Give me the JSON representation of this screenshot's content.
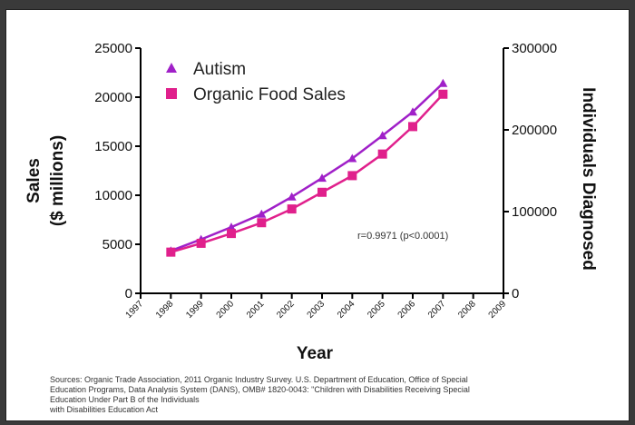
{
  "chart_data": {
    "type": "line",
    "xlabel": "Year",
    "ylabel_left_line1": "Sales",
    "ylabel_left_line2": "($ millions)",
    "ylabel_right": "Individuals Diagnosed",
    "x_ticks": [
      "1997",
      "1998",
      "1999",
      "2000",
      "2001",
      "2002",
      "2003",
      "2004",
      "2005",
      "2006",
      "2007",
      "2008",
      "2009"
    ],
    "xlim": [
      1997,
      2009
    ],
    "ylim_left": [
      0,
      25000
    ],
    "ylim_right": [
      0,
      300000
    ],
    "y_ticks_left": [
      "0",
      "5000",
      "10000",
      "15000",
      "20000",
      "25000"
    ],
    "y_ticks_right": [
      "0",
      "100000",
      "200000",
      "300000"
    ],
    "x": [
      1998,
      1999,
      2000,
      2001,
      2002,
      2003,
      2004,
      2005,
      2006,
      2007
    ],
    "series": [
      {
        "name": "Autism",
        "axis": "right",
        "marker": "triangle",
        "color": "#a020c8",
        "values": [
          52000,
          66000,
          81000,
          97000,
          118000,
          141000,
          165000,
          193000,
          222000,
          257000
        ]
      },
      {
        "name": "Organic Food Sales",
        "axis": "left",
        "marker": "square",
        "color": "#e0208c",
        "values": [
          4200,
          5100,
          6100,
          7200,
          8600,
          10300,
          12000,
          14200,
          17000,
          20300
        ]
      }
    ],
    "annotation": "r=0.9971 (p<0.0001)",
    "legend_position": "top-left",
    "grid": false
  },
  "source_lines": [
    "Sources: Organic Trade Association,  2011 Organic Industry Survey. U.S. Department of Education, Office of Special",
    "Education Programs, Data Analysis System (DANS), OMB# 1820-0043: \"Children with Disabilities Receiving Special",
    "Education Under Part B of the Individuals",
    "with Disabilities Education Act"
  ]
}
